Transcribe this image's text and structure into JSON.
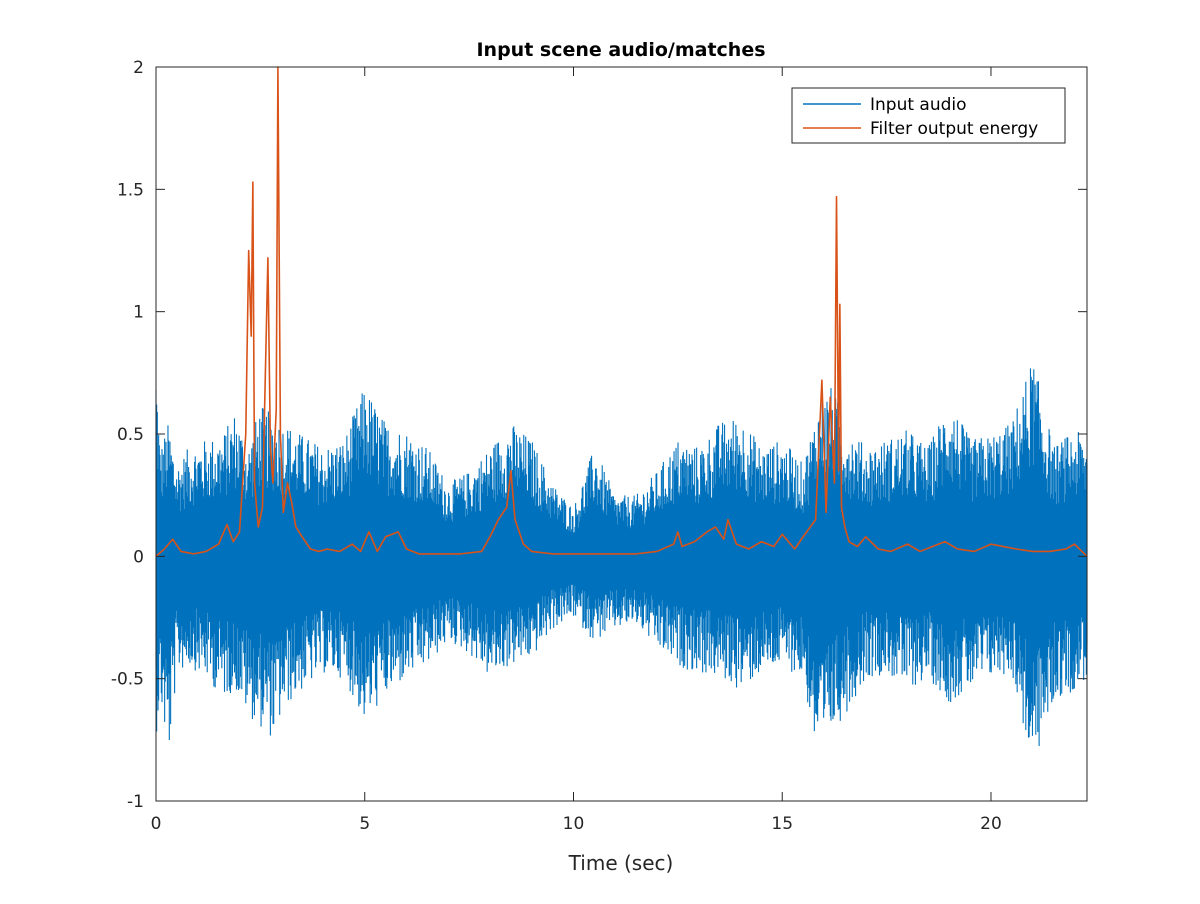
{
  "chart_data": {
    "type": "line",
    "title": "Input scene audio/matches",
    "xlabel": "Time (sec)",
    "ylabel": "",
    "xlim": [
      0,
      22.3
    ],
    "ylim": [
      -1,
      2
    ],
    "x_ticks": [
      0,
      5,
      10,
      15,
      20
    ],
    "y_ticks": [
      -1,
      -0.5,
      0,
      0.5,
      1,
      1.5,
      2
    ],
    "x_tick_labels": [
      "0",
      "5",
      "10",
      "15",
      "20"
    ],
    "y_tick_labels": [
      "-1",
      "-0.5",
      "0",
      "0.5",
      "1",
      "1.5",
      "2"
    ],
    "grid": false,
    "legend_position": "top-right",
    "series": [
      {
        "name": "Input audio",
        "color": "#0072BD",
        "style": "dense waveform (upper/lower envelope)",
        "upper_envelope": {
          "x": [
            0,
            0.1,
            0.3,
            0.5,
            0.8,
            1.2,
            1.6,
            1.9,
            2.2,
            2.5,
            2.8,
            3.1,
            3.5,
            4.0,
            4.5,
            5.0,
            5.5,
            6.0,
            6.5,
            7.0,
            7.5,
            8.0,
            8.5,
            9.0,
            9.5,
            10.0,
            10.5,
            11.0,
            11.5,
            12.0,
            12.5,
            13.0,
            13.5,
            14.0,
            14.5,
            15.0,
            15.5,
            15.9,
            16.2,
            16.5,
            17.0,
            17.5,
            18.0,
            18.5,
            19.0,
            19.5,
            20.0,
            20.5,
            21.0,
            21.5,
            22.0,
            22.3
          ],
          "y": [
            0.84,
            0.45,
            0.55,
            0.38,
            0.45,
            0.48,
            0.5,
            0.6,
            0.45,
            0.62,
            0.58,
            0.55,
            0.5,
            0.45,
            0.48,
            0.7,
            0.55,
            0.52,
            0.45,
            0.3,
            0.35,
            0.45,
            0.55,
            0.48,
            0.3,
            0.2,
            0.45,
            0.25,
            0.25,
            0.35,
            0.48,
            0.45,
            0.55,
            0.58,
            0.45,
            0.48,
            0.38,
            0.65,
            0.7,
            0.55,
            0.45,
            0.48,
            0.52,
            0.45,
            0.65,
            0.48,
            0.5,
            0.55,
            0.82,
            0.45,
            0.52,
            0.48
          ]
        },
        "lower_envelope": {
          "x": [
            0,
            0.1,
            0.3,
            0.5,
            0.8,
            1.2,
            1.6,
            1.9,
            2.2,
            2.5,
            2.8,
            3.1,
            3.5,
            4.0,
            4.5,
            5.0,
            5.5,
            6.0,
            6.5,
            7.0,
            7.5,
            8.0,
            8.5,
            9.0,
            9.5,
            10.0,
            10.5,
            11.0,
            11.5,
            12.0,
            12.5,
            13.0,
            13.5,
            14.0,
            14.5,
            15.0,
            15.5,
            15.9,
            16.2,
            16.5,
            17.0,
            17.5,
            18.0,
            18.5,
            19.0,
            19.5,
            20.0,
            20.5,
            21.0,
            21.5,
            22.0,
            22.3
          ],
          "y": [
            -0.74,
            -0.6,
            -0.84,
            -0.48,
            -0.45,
            -0.5,
            -0.58,
            -0.55,
            -0.65,
            -0.7,
            -0.75,
            -0.62,
            -0.55,
            -0.48,
            -0.5,
            -0.68,
            -0.58,
            -0.5,
            -0.45,
            -0.35,
            -0.4,
            -0.5,
            -0.45,
            -0.42,
            -0.3,
            -0.25,
            -0.35,
            -0.3,
            -0.28,
            -0.38,
            -0.45,
            -0.48,
            -0.5,
            -0.55,
            -0.48,
            -0.45,
            -0.5,
            -0.9,
            -0.72,
            -0.65,
            -0.5,
            -0.48,
            -0.55,
            -0.5,
            -0.6,
            -0.55,
            -0.5,
            -0.48,
            -0.88,
            -0.6,
            -0.55,
            -0.5
          ]
        }
      },
      {
        "name": "Filter output energy",
        "color": "#D95319",
        "x": [
          0,
          0.2,
          0.4,
          0.6,
          0.9,
          1.2,
          1.5,
          1.7,
          1.85,
          2.0,
          2.15,
          2.22,
          2.28,
          2.32,
          2.36,
          2.45,
          2.55,
          2.62,
          2.68,
          2.74,
          2.8,
          2.88,
          2.92,
          2.98,
          3.05,
          3.15,
          3.25,
          3.35,
          3.5,
          3.7,
          3.9,
          4.1,
          4.4,
          4.7,
          4.9,
          5.1,
          5.3,
          5.5,
          5.8,
          6.0,
          6.3,
          6.8,
          7.3,
          7.8,
          8.0,
          8.2,
          8.4,
          8.5,
          8.6,
          8.8,
          9.0,
          9.5,
          10.0,
          10.5,
          11.0,
          11.5,
          12.0,
          12.4,
          12.5,
          12.6,
          12.9,
          13.2,
          13.4,
          13.6,
          13.7,
          13.9,
          14.2,
          14.5,
          14.8,
          15.0,
          15.3,
          15.5,
          15.8,
          15.95,
          16.05,
          16.15,
          16.25,
          16.3,
          16.35,
          16.38,
          16.42,
          16.5,
          16.6,
          16.8,
          17.0,
          17.3,
          17.6,
          18.0,
          18.3,
          18.6,
          18.9,
          19.2,
          19.6,
          20.0,
          20.3,
          20.6,
          21.0,
          21.4,
          21.8,
          22.0,
          22.3
        ],
        "y": [
          0.0,
          0.03,
          0.07,
          0.02,
          0.01,
          0.02,
          0.05,
          0.13,
          0.06,
          0.1,
          0.5,
          1.25,
          0.9,
          1.53,
          0.3,
          0.12,
          0.2,
          0.75,
          1.22,
          0.45,
          0.3,
          0.6,
          2.0,
          0.5,
          0.18,
          0.3,
          0.22,
          0.12,
          0.08,
          0.03,
          0.02,
          0.03,
          0.02,
          0.05,
          0.02,
          0.1,
          0.02,
          0.08,
          0.1,
          0.03,
          0.01,
          0.01,
          0.01,
          0.02,
          0.08,
          0.15,
          0.2,
          0.35,
          0.15,
          0.05,
          0.02,
          0.01,
          0.01,
          0.01,
          0.01,
          0.01,
          0.02,
          0.05,
          0.1,
          0.04,
          0.06,
          0.1,
          0.12,
          0.07,
          0.15,
          0.05,
          0.03,
          0.06,
          0.04,
          0.09,
          0.03,
          0.08,
          0.15,
          0.72,
          0.18,
          0.65,
          0.3,
          1.47,
          0.35,
          1.03,
          0.2,
          0.12,
          0.06,
          0.04,
          0.08,
          0.03,
          0.02,
          0.05,
          0.02,
          0.04,
          0.06,
          0.03,
          0.02,
          0.05,
          0.04,
          0.03,
          0.02,
          0.02,
          0.03,
          0.05,
          0.0
        ]
      }
    ]
  }
}
